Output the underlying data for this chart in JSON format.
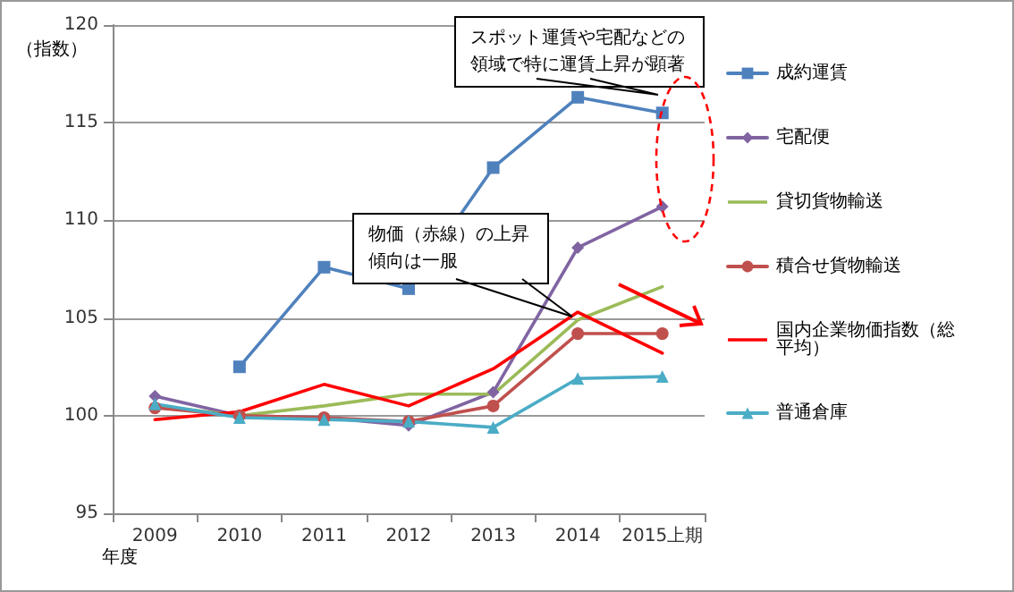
{
  "chart_data": {
    "type": "line",
    "ylabel": "（指数）",
    "xlabel": "年度",
    "categories": [
      "2009",
      "2010",
      "2011",
      "2012",
      "2013",
      "2014",
      "2015上期"
    ],
    "ylim": [
      95,
      120
    ],
    "yticks": [
      95,
      100,
      105,
      110,
      115,
      120
    ],
    "grid": "y",
    "legend": "right",
    "annotations": [
      "スポット運賃や宅配などの領域で特に運賃上昇が顕著",
      "物価（赤線）の上昇傾向は一服"
    ],
    "series": [
      {
        "name": "成約運賃",
        "color": "#4f81bd",
        "marker": "square",
        "values": [
          null,
          102.5,
          107.6,
          106.5,
          112.7,
          116.3,
          115.5
        ]
      },
      {
        "name": "宅配便",
        "color": "#8064a2",
        "marker": "diamond",
        "values": [
          101.0,
          100.0,
          99.9,
          99.5,
          101.2,
          108.6,
          110.7
        ]
      },
      {
        "name": "貸切貨物輸送",
        "color": "#9bbb59",
        "marker": "none",
        "values": [
          100.5,
          100.0,
          100.5,
          101.1,
          101.1,
          104.9,
          106.6
        ]
      },
      {
        "name": "積合せ貨物輸送",
        "color": "#c0504d",
        "marker": "circle",
        "values": [
          100.4,
          100.0,
          99.9,
          99.7,
          100.5,
          104.2,
          104.2
        ]
      },
      {
        "name": "国内企業物価指数（総平均）",
        "color": "#ff0000",
        "marker": "none",
        "values": [
          99.8,
          100.2,
          101.6,
          100.5,
          102.4,
          105.3,
          103.2
        ]
      },
      {
        "name": "普通倉庫",
        "color": "#4bacc6",
        "marker": "triangle",
        "values": [
          100.6,
          99.9,
          99.8,
          99.7,
          99.4,
          101.9,
          102.0
        ]
      }
    ]
  }
}
